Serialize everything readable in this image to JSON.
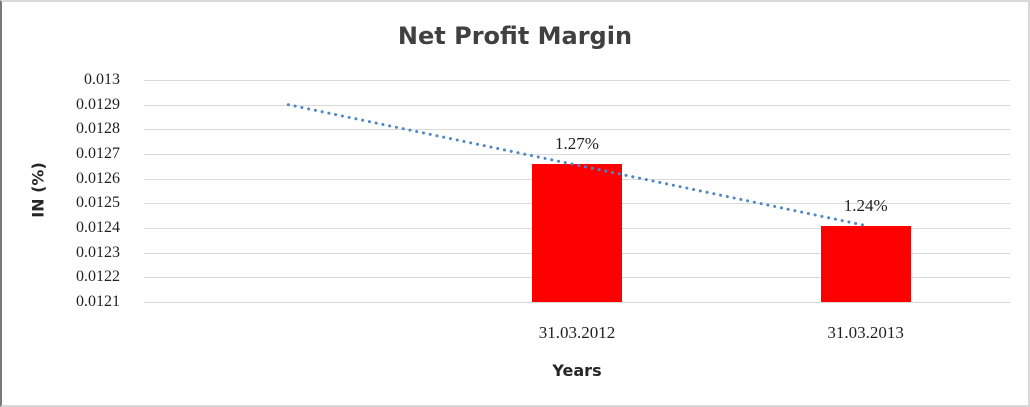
{
  "chart_data": {
    "type": "bar",
    "title": "Net Profit Margin",
    "xlabel": "Years",
    "ylabel": "IN (%)",
    "categories": [
      "",
      "31.03.2012",
      "31.03.2013"
    ],
    "values": [
      null,
      0.01266,
      0.01241
    ],
    "bar_labels": [
      "",
      "1.27%",
      "1.24%"
    ],
    "y_ticks": [
      0.013,
      0.0129,
      0.0128,
      0.0127,
      0.0126,
      0.0125,
      0.0124,
      0.0123,
      0.0122,
      0.0121
    ],
    "y_tick_labels": [
      "0.013",
      "0.0129",
      "0.0128",
      "0.0127",
      "0.0126",
      "0.0125",
      "0.0124",
      "0.0123",
      "0.0122",
      "0.0121"
    ],
    "ylim": [
      0.0121,
      0.013
    ],
    "grid": true,
    "legend": "none",
    "colors": {
      "bar": "#ff0000",
      "trendline": "#4e86c6",
      "gridline": "#d9d9d9",
      "title": "#404040",
      "tick_text": "#1f1f1f"
    },
    "trendline": {
      "style": "dotted",
      "color": "#4e86c6",
      "from": {
        "category_index": 0,
        "value": 0.0129
      },
      "to": {
        "category_index": 2,
        "value": 0.01241
      }
    }
  }
}
